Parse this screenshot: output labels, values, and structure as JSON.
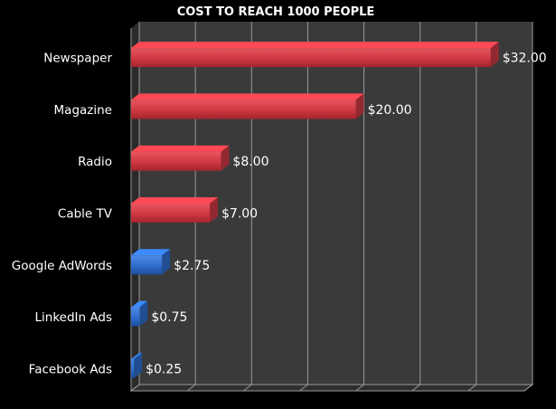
{
  "chart_data": {
    "type": "bar",
    "orientation": "horizontal",
    "title": "COST TO REACH 1000 PEOPLE",
    "xlabel": "",
    "ylabel": "",
    "xlim": [
      0,
      35
    ],
    "grid": true,
    "legend": "none",
    "categories": [
      "Newspaper",
      "Magazine",
      "Radio",
      "Cable TV",
      "Google AdWords",
      "LinkedIn Ads",
      "Facebook Ads"
    ],
    "values": [
      32,
      20,
      8,
      7,
      2.75,
      0.75,
      0.25
    ],
    "value_labels": [
      "$32.00",
      "$20.00",
      "$8.00",
      "$7.00",
      "$2.75",
      "$0.75",
      "$0.25"
    ],
    "bar_colors": [
      "#d23a44",
      "#d23a44",
      "#d23a44",
      "#d23a44",
      "#2f6fd0",
      "#2f6fd0",
      "#2f6fd0"
    ],
    "background_color": "#000000",
    "plot_color": "#3a3a3a",
    "grid_color": "#9a9a9a"
  }
}
